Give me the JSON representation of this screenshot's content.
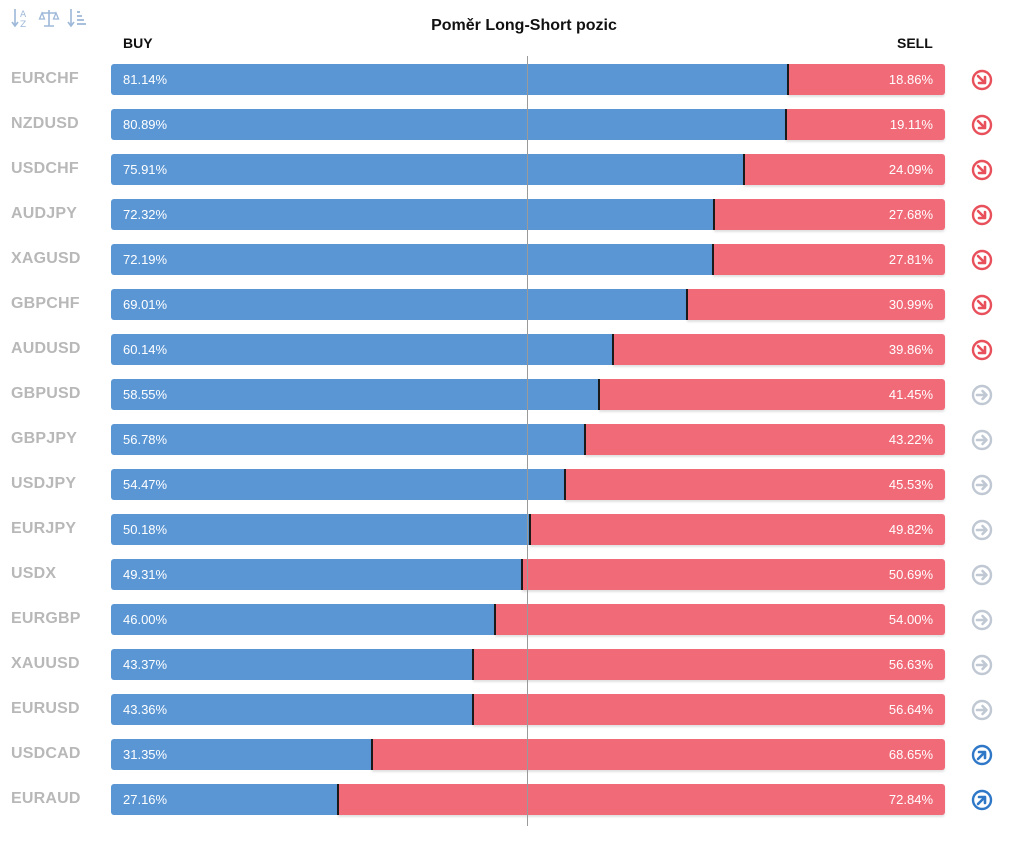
{
  "toolbar": {
    "icons": [
      "sort-alpha-icon",
      "balance-scale-icon",
      "sort-amount-icon"
    ]
  },
  "chart_data": {
    "type": "bar",
    "title": "Poměr Long-Short pozic",
    "series": [
      {
        "name": "BUY",
        "values": [
          81.14,
          80.89,
          75.91,
          72.32,
          72.19,
          69.01,
          60.14,
          58.55,
          56.78,
          54.47,
          50.18,
          49.31,
          46.0,
          43.37,
          43.36,
          31.35,
          27.16
        ]
      },
      {
        "name": "SELL",
        "values": [
          18.86,
          19.11,
          24.09,
          27.68,
          27.81,
          30.99,
          39.86,
          41.45,
          43.22,
          45.53,
          49.82,
          50.69,
          54.0,
          56.63,
          56.64,
          68.65,
          72.84
        ]
      }
    ],
    "ylim": [
      0,
      100
    ],
    "colors": {
      "buy": "#5a96d4",
      "sell": "#f06a78"
    },
    "rows": [
      {
        "symbol": "EURCHF",
        "buy": "81.14%",
        "sell": "18.86%",
        "buy_value": 81.14,
        "trend": "down"
      },
      {
        "symbol": "NZDUSD",
        "buy": "80.89%",
        "sell": "19.11%",
        "buy_value": 80.89,
        "trend": "down"
      },
      {
        "symbol": "USDCHF",
        "buy": "75.91%",
        "sell": "24.09%",
        "buy_value": 75.91,
        "trend": "down"
      },
      {
        "symbol": "AUDJPY",
        "buy": "72.32%",
        "sell": "27.68%",
        "buy_value": 72.32,
        "trend": "down"
      },
      {
        "symbol": "XAGUSD",
        "buy": "72.19%",
        "sell": "27.81%",
        "buy_value": 72.19,
        "trend": "down"
      },
      {
        "symbol": "GBPCHF",
        "buy": "69.01%",
        "sell": "30.99%",
        "buy_value": 69.01,
        "trend": "down"
      },
      {
        "symbol": "AUDUSD",
        "buy": "60.14%",
        "sell": "39.86%",
        "buy_value": 60.14,
        "trend": "down"
      },
      {
        "symbol": "GBPUSD",
        "buy": "58.55%",
        "sell": "41.45%",
        "buy_value": 58.55,
        "trend": "neutral"
      },
      {
        "symbol": "GBPJPY",
        "buy": "56.78%",
        "sell": "43.22%",
        "buy_value": 56.78,
        "trend": "neutral"
      },
      {
        "symbol": "USDJPY",
        "buy": "54.47%",
        "sell": "45.53%",
        "buy_value": 54.47,
        "trend": "neutral"
      },
      {
        "symbol": "EURJPY",
        "buy": "50.18%",
        "sell": "49.82%",
        "buy_value": 50.18,
        "trend": "neutral"
      },
      {
        "symbol": "USDX",
        "buy": "49.31%",
        "sell": "50.69%",
        "buy_value": 49.31,
        "trend": "neutral"
      },
      {
        "symbol": "EURGBP",
        "buy": "46.00%",
        "sell": "54.00%",
        "buy_value": 46.0,
        "trend": "neutral"
      },
      {
        "symbol": "XAUUSD",
        "buy": "43.37%",
        "sell": "56.63%",
        "buy_value": 43.37,
        "trend": "neutral"
      },
      {
        "symbol": "EURUSD",
        "buy": "43.36%",
        "sell": "56.64%",
        "buy_value": 43.36,
        "trend": "neutral"
      },
      {
        "symbol": "USDCAD",
        "buy": "31.35%",
        "sell": "68.65%",
        "buy_value": 31.35,
        "trend": "up"
      },
      {
        "symbol": "EURAUD",
        "buy": "27.16%",
        "sell": "72.84%",
        "buy_value": 27.16,
        "trend": "up"
      }
    ]
  },
  "labels": {
    "buy": "BUY",
    "sell": "SELL"
  },
  "trend_colors": {
    "down": "#e8505b",
    "neutral": "#c0c8d4",
    "up": "#2f78c8"
  }
}
